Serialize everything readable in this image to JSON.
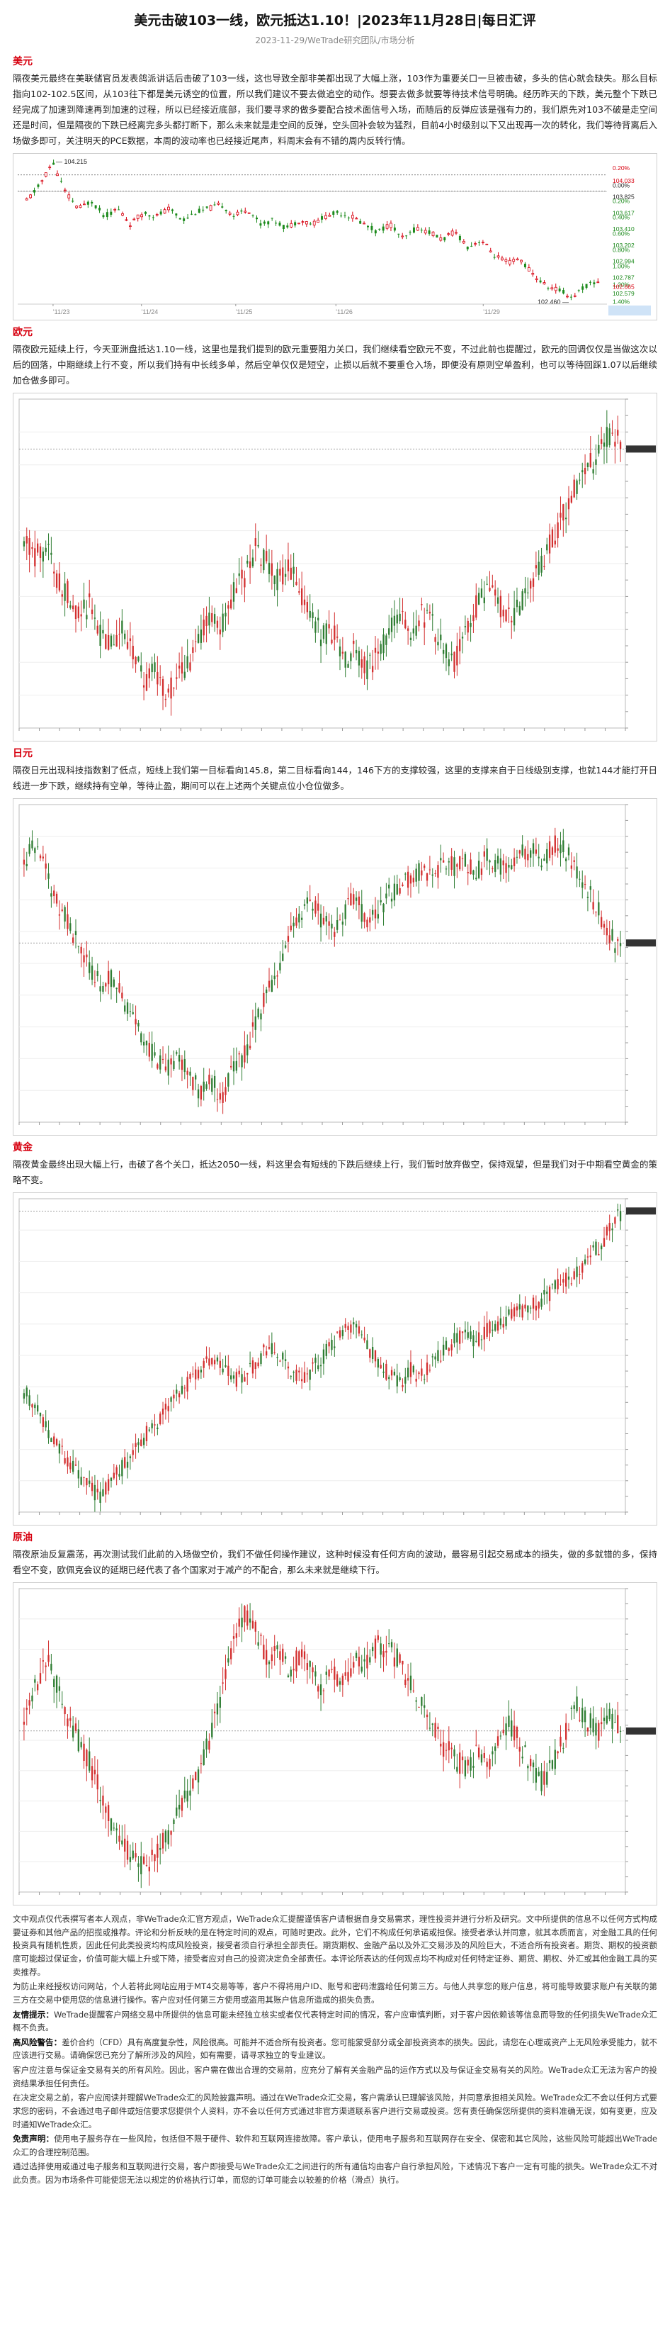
{
  "header": {
    "title": "美元击破103一线，欧元抵达1.10！|2023年11月28日|每日汇评",
    "meta": "2023-11-29/WeTrade研究团队/市场分析"
  },
  "sections": [
    {
      "key": "usd",
      "title": "美元",
      "text": "隔夜美元最终在美联储官员发表鸽派讲话后击破了103一线，这也导致全部非美都出现了大幅上涨，103作为重要关口一旦被击破，多头的信心就会缺失。那么目标指向102-102.5区间，从103往下都是美元诱空的位置，所以我们建议不要去做追空的动作。想要去做多就要等待技术信号明确。经历昨天的下跌，美元整个下跌已经完成了加速到降速再到加速的过程，所以已经接近底部，我们要寻求的做多要配合技术面信号入场，而随后的反弹应该是强有力的，我们原先对103不破是走空间还是时间，但是隔夜的下跌已经离完多头都打断下，那么未来就是走空间的反弹，空头回补会较为猛烈，目前4小时级别以下又出现再一次的转化，我们等待背离后入场做多即可，关注明天的PCE数据，本周的波动率也已经接近尾声，料周末会有不错的周内反转行情。",
      "chart_data": {
        "type": "candlestick",
        "title": "",
        "x_ticks": [
          "'11/23",
          "'11/24",
          "'11/25",
          "'11/26",
          "'11/29"
        ],
        "price_labels": [
          "104.033",
          "103.825",
          "103.617",
          "103.410",
          "103.202",
          "102.994",
          "102.787",
          "102.665",
          "102.579",
          "102.372"
        ],
        "pct_labels": [
          "0.20%",
          "0.00%",
          "0.20%",
          "0.40%",
          "0.60%",
          "0.80%",
          "1.00%",
          "1.20%",
          "1.40%"
        ],
        "annotations": [
          "104.215",
          "102.460"
        ],
        "ylim": [
          102.37,
          104.25
        ],
        "approx_path": [
          103.7,
          103.9,
          104.2,
          103.8,
          103.6,
          103.7,
          103.5,
          103.6,
          103.4,
          103.55,
          103.5,
          103.6,
          103.45,
          103.55,
          103.6,
          103.65,
          103.5,
          103.6,
          103.4,
          103.45,
          103.35,
          103.45,
          103.4,
          103.5,
          103.55,
          103.5,
          103.4,
          103.3,
          103.4,
          103.2,
          103.35,
          103.3,
          103.2,
          103.3,
          103.1,
          103.2,
          103.0,
          102.9,
          102.95,
          102.75,
          102.6,
          102.55,
          102.46,
          102.6,
          102.66
        ]
      }
    },
    {
      "key": "eur",
      "title": "欧元",
      "text": "隔夜欧元延续上行，今天亚洲盘抵达1.10一线，这里也是我们提到的欧元重要阻力关口，我们继续看空欧元不变，不过此前也提醒过，欧元的回调仅仅是当做这次以后的回落，中期继续上行不变，所以我们持有中长线多单，然后空单仅仅是短空，止损以后就不要重仓入场，即便没有原则空单盈利，也可以等待回踩1.07以后继续加仓做多即可。",
      "chart_data": {
        "type": "candlestick",
        "title": "",
        "ylim": [
          1.046,
          1.104
        ],
        "approx_path": [
          1.08,
          1.076,
          1.078,
          1.072,
          1.07,
          1.066,
          1.068,
          1.062,
          1.06,
          1.064,
          1.058,
          1.054,
          1.056,
          1.052,
          1.055,
          1.058,
          1.062,
          1.066,
          1.064,
          1.07,
          1.073,
          1.078,
          1.075,
          1.072,
          1.074,
          1.07,
          1.066,
          1.062,
          1.063,
          1.058,
          1.06,
          1.056,
          1.059,
          1.063,
          1.066,
          1.062,
          1.066,
          1.064,
          1.06,
          1.058,
          1.063,
          1.068,
          1.071,
          1.068,
          1.065,
          1.068,
          1.072,
          1.076,
          1.08,
          1.084,
          1.089,
          1.092,
          1.094,
          1.098,
          1.096
        ]
      }
    },
    {
      "key": "jpy",
      "title": "日元",
      "text": "隔夜日元出现科技指数割了低点，短线上我们第一目标看向145.8，第二目标看向144，146下方的支撑较强，这里的支撑来自于日线级别支撑，也就144才能打开日线进一步下跌，继续持有空单，等待止盈，期间可以在上述两个关键点位小仓位做多。",
      "chart_data": {
        "type": "candlestick",
        "title": "",
        "ylim": [
          138.5,
          152.2
        ],
        "approx_path": [
          149.8,
          150.4,
          149.2,
          148.0,
          147.2,
          146.0,
          145.0,
          144.5,
          144.8,
          143.8,
          142.8,
          142.0,
          141.2,
          140.8,
          141.5,
          140.4,
          139.8,
          140.2,
          139.6,
          140.8,
          141.5,
          142.8,
          144.0,
          145.2,
          146.4,
          147.5,
          148.0,
          147.2,
          146.6,
          147.6,
          148.2,
          147.0,
          147.4,
          148.3,
          148.6,
          149.0,
          149.4,
          149.2,
          149.6,
          149.5,
          149.8,
          149.2,
          150.0,
          149.6,
          149.2,
          150.0,
          150.4,
          149.8,
          150.6,
          150.2,
          149.4,
          148.6,
          147.6,
          146.6,
          145.8
        ]
      }
    },
    {
      "key": "gold",
      "title": "黄金",
      "text": "隔夜黄金最终出现大幅上行，击破了各个关口，抵达2050一线，料这里会有短线的下跌后继续上行，我们暂时放弃做空，保持观望，但是我们对于中期看空黄金的策略不变。",
      "chart_data": {
        "type": "candlestick",
        "title": "",
        "ylim": [
          1805,
          2062
        ],
        "approx_path": [
          1905,
          1890,
          1872,
          1858,
          1848,
          1835,
          1824,
          1818,
          1832,
          1842,
          1856,
          1868,
          1878,
          1890,
          1904,
          1912,
          1922,
          1930,
          1924,
          1912,
          1918,
          1928,
          1940,
          1934,
          1922,
          1914,
          1920,
          1932,
          1944,
          1952,
          1958,
          1942,
          1930,
          1918,
          1910,
          1922,
          1916,
          1926,
          1938,
          1946,
          1950,
          1944,
          1954,
          1960,
          1966,
          1970,
          1974,
          1980,
          1988,
          1994,
          2002,
          2012,
          2022,
          2036,
          2050
        ]
      }
    },
    {
      "key": "oil",
      "title": "原油",
      "text": "隔夜原油反复震荡，再次测试我们此前的入场做空价，我们不做任何操作建议，这种时候没有任何方向的波动，最容易引起交易成本的损失，做的多就错的多，保持看空不变，欧佩克会议的延期已经代表了各个国家对于减产的不配合，那么未来就是继续下行。",
      "chart_data": {
        "type": "candlestick",
        "title": "",
        "ylim": [
          66.5,
          90.5
        ],
        "approx_path": [
          80.0,
          82.5,
          84.8,
          83.0,
          80.2,
          78.4,
          76.6,
          74.2,
          72.0,
          70.2,
          69.0,
          68.4,
          69.6,
          71.0,
          72.8,
          74.6,
          76.0,
          79.4,
          82.8,
          86.0,
          88.6,
          87.2,
          84.6,
          86.0,
          83.4,
          85.4,
          84.2,
          82.6,
          84.0,
          83.0,
          85.0,
          84.4,
          86.2,
          85.8,
          84.6,
          83.0,
          81.2,
          79.8,
          78.0,
          77.0,
          76.2,
          77.6,
          76.4,
          78.6,
          79.8,
          78.0,
          76.2,
          75.0,
          76.8,
          79.0,
          81.4,
          80.0,
          79.2,
          80.4,
          79.6
        ]
      }
    }
  ],
  "footer": [
    {
      "lead": "",
      "text": "文中观点仅代表撰写者本人观点，非WeTrade众汇官方观点，WeTrade众汇提醒谨慎客户请根据自身交易需求，理性投资并进行分析及研究。文中所提供的信息不以任何方式构成要证券和其他产品的招揽或推荐。评论和分析反映的是在特定时间的观点，可随时更改。此外，它们不构成任何承诺或担保。接受者承认并同意，就其本质而言，对金融工具的任何投资具有随机性质，因此任何此类投资均构成风险投资，接受者须自行承担全部责任。期货期权、金融产品以及外汇交易涉及的风险巨大，不适合所有投资者。期货、期权的投资额度可能超过保证金，价值可能大幅上升或下降，接受者应对自己的投资决定负全部责任。本评论所表达的任何观点均不构成对任何特定证券、期货、期权、外汇或其他金融工具的买卖推荐。"
    },
    {
      "lead": "",
      "text": "为防止来经授权访问网站，个人若将此网站应用于MT4交易等等，客户不得将用户ID、账号和密码泄露给任何第三方。与他人共享您的账户信息，将可能导致要求账户有关联的第三方在交易中使用您的信息进行操作。客户应对任何第三方使用或盗用其账户信息所造成的损失负责。"
    },
    {
      "lead": "友情提示：",
      "text": "WeTrade提醒客户网络交易中所提供的信息可能未经独立核实或者仅代表特定时间的情况，客户应审慎判断，对于客户因依赖该等信息而导致的任何损失WeTrade众汇概不负责。"
    },
    {
      "lead": "高风险警告：",
      "text": "差价合约（CFD）具有高度复杂性，风险很高。可能并不适合所有投资者。您可能蒙受部分或全部投资资本的损失。因此，请您在心理或资产上无风险承受能力，就不应该进行交易。请确保您已充分了解所涉及的风险，如有需要，请寻求独立的专业建议。"
    },
    {
      "lead": "",
      "text": "客户应注意与保证金交易有关的所有风险。因此，客户需在做出合理的交易前，应充分了解有关金融产品的运作方式以及与保证金交易有关的风险。WeTrade众汇无法为客户的投资结果承担任何责任。"
    },
    {
      "lead": "",
      "text": "在决定交易之前，客户应阅读并理解WeTrade众汇的风险披露声明。通过在WeTrade众汇交易，客户需承认已理解该风险，并同意承担相关风险。WeTrade众汇不会以任何方式要求您的密码，不会通过电子邮件或短信要求您提供个人资料，亦不会以任何方式通过非官方渠道联系客户进行交易或投资。您有责任确保您所提供的资料准确无误，如有变更，应及时通知WeTrade众汇。"
    },
    {
      "lead": "免责声明：",
      "text": "使用电子服务存在一些风险，包括但不限于硬件、软件和互联网连接故障。客户承认，使用电子服务和互联网存在安全、保密和其它风险，这些风险可能超出WeTrade众汇的合理控制范围。"
    },
    {
      "lead": "",
      "text": "通过选择使用或通过电子服务和互联网进行交易，客户即接受与WeTrade众汇之间进行的所有通信均由客户自行承担风险，下述情况下客户一定有可能的损失。WeTrade众汇不对此负责。因为市场条件可能使您无法以规定的价格执行订单，而您的订单可能会以较差的价格（滑点）执行。"
    }
  ]
}
